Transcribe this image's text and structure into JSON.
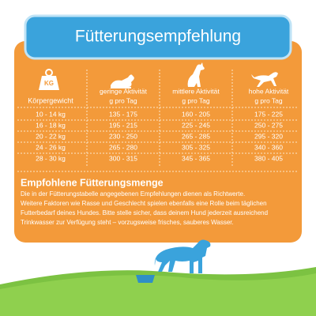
{
  "title": "Fütterungsempfehlung",
  "table": {
    "icon_label": "KG",
    "headers": [
      {
        "label": "Körpergewicht"
      },
      {
        "label": "geringe Aktivität",
        "unit": "g pro Tag"
      },
      {
        "label": "mittlere Aktivität",
        "unit": "g pro Tag"
      },
      {
        "label": "hohe Aktivität",
        "unit": "g pro Tag"
      }
    ],
    "rows": [
      [
        "10 - 14 kg",
        "135 - 175",
        "160 - 205",
        "175 - 225"
      ],
      [
        "16 - 18 kg",
        "195 - 215",
        "225 - 245",
        "250 - 275"
      ],
      [
        "20 - 22 kg",
        "230 - 250",
        "265 - 285",
        "295 - 320"
      ],
      [
        "24 - 26 kg",
        "265 - 280",
        "305 - 325",
        "340 - 360"
      ],
      [
        "28 - 30 kg",
        "300 - 315",
        "345 - 365",
        "380 - 405"
      ]
    ]
  },
  "section": {
    "heading": "Empfohlene Fütterungsmenge",
    "lines": [
      "Die in der Fütterungstabelle angegebenen Empfehlungen dienen als Richtwerte.",
      "Weitere Faktoren wie Rasse und Geschlecht spielen ebenfalls eine Rolle beim täglichen",
      "Futterbedarf deines Hundes. Bitte stelle sicher, dass deinem Hund jederzeit ausreichend",
      "Trinkwasser zur Verfügung steht – vorzugsweise frisches, sauberes Wasser."
    ]
  }
}
